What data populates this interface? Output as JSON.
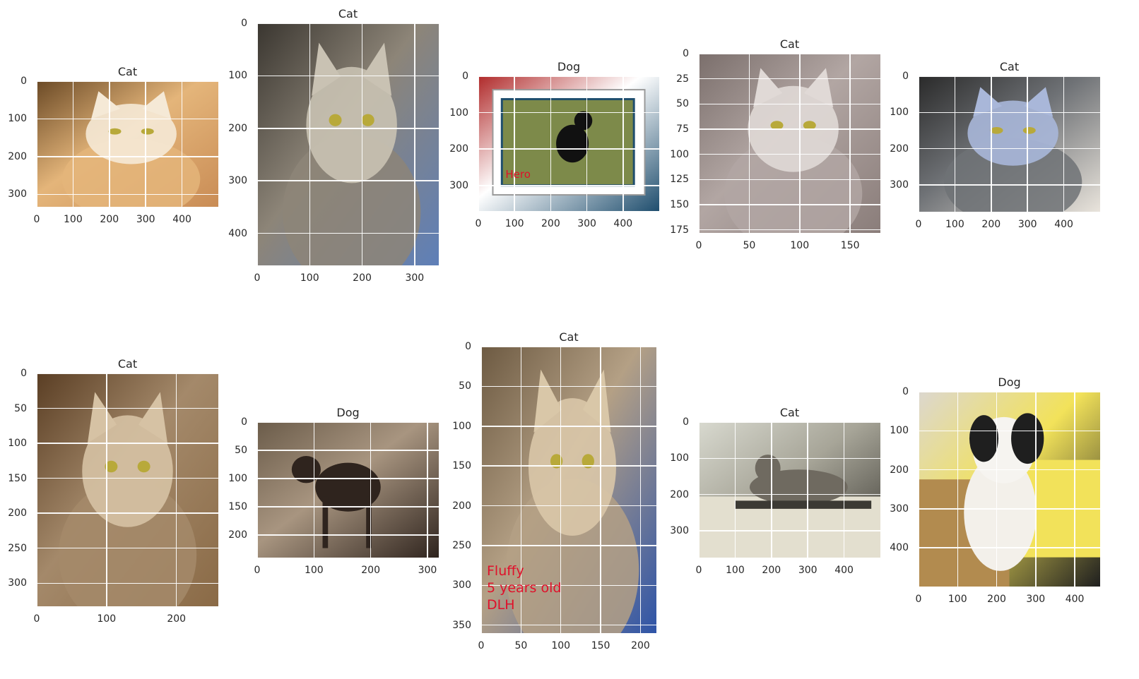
{
  "panels": [
    {
      "title": "Cat",
      "xlim": [
        0,
        500
      ],
      "ylim": [
        0,
        333
      ],
      "xticks": [
        0,
        100,
        200,
        300,
        400
      ],
      "yticks": [
        0,
        100,
        200,
        300
      ],
      "palette": [
        "#6b4a26",
        "#e4b57a",
        "#f5e9d6",
        "#c98c55"
      ],
      "subject": "orange-cat"
    },
    {
      "title": "Cat",
      "xlim": [
        0,
        346
      ],
      "ylim": [
        0,
        461
      ],
      "xticks": [
        0,
        100,
        200,
        300
      ],
      "yticks": [
        0,
        100,
        200,
        300,
        400
      ],
      "palette": [
        "#3a3630",
        "#8d8578",
        "#c9c2b3",
        "#5e7fb8"
      ],
      "subject": "tabby-cat"
    },
    {
      "title": "Dog",
      "xlim": [
        0,
        500
      ],
      "ylim": [
        0,
        370
      ],
      "xticks": [
        0,
        100,
        200,
        300,
        400
      ],
      "yticks": [
        0,
        100,
        200,
        300
      ],
      "palette": [
        "#b02a2a",
        "#ffffff",
        "#7d8a4a",
        "#1f4e6e"
      ],
      "subject": "framed-dog",
      "overlay_text": "Hero"
    },
    {
      "title": "Cat",
      "xlim": [
        0,
        180
      ],
      "ylim": [
        0,
        178
      ],
      "xticks": [
        0,
        50,
        100,
        150
      ],
      "yticks": [
        0,
        25,
        50,
        75,
        100,
        125,
        150,
        175
      ],
      "palette": [
        "#7b6f6c",
        "#b2a6a3",
        "#e0d9d6",
        "#8a7d7a"
      ],
      "subject": "siamese-cat"
    },
    {
      "title": "Cat",
      "xlim": [
        0,
        500
      ],
      "ylim": [
        0,
        374
      ],
      "xticks": [
        0,
        100,
        200,
        300,
        400
      ],
      "yticks": [
        0,
        100,
        200,
        300
      ],
      "palette": [
        "#2a2a2a",
        "#6f7276",
        "#a9b7d9",
        "#e9e4dc"
      ],
      "subject": "grey-cat"
    },
    {
      "title": "Cat",
      "xlim": [
        0,
        260
      ],
      "ylim": [
        0,
        333
      ],
      "xticks": [
        0,
        100,
        200
      ],
      "yticks": [
        0,
        50,
        100,
        150,
        200,
        250,
        300
      ],
      "palette": [
        "#5a3e24",
        "#a4896a",
        "#d6c2a4",
        "#8a6a46"
      ],
      "subject": "closeup-cat"
    },
    {
      "title": "Dog",
      "xlim": [
        0,
        320
      ],
      "ylim": [
        0,
        240
      ],
      "xticks": [
        0,
        100,
        200,
        300
      ],
      "yticks": [
        0,
        50,
        100,
        150,
        200
      ],
      "palette": [
        "#6b5c4a",
        "#a89580",
        "#cfc3b0",
        "#2f241e"
      ],
      "subject": "brown-dog"
    },
    {
      "title": "Cat",
      "xlim": [
        0,
        220
      ],
      "ylim": [
        0,
        360
      ],
      "xticks": [
        0,
        50,
        100,
        150,
        200
      ],
      "yticks": [
        0,
        50,
        100,
        150,
        200,
        250,
        300,
        350
      ],
      "palette": [
        "#6d5a42",
        "#b4a085",
        "#d9c7a8",
        "#2e54a8"
      ],
      "subject": "fluffy-cat",
      "overlay_text": "Fluffy\n5 years old\nDLH"
    },
    {
      "title": "Cat",
      "xlim": [
        0,
        500
      ],
      "ylim": [
        0,
        374
      ],
      "xticks": [
        0,
        100,
        200,
        300,
        400
      ],
      "yticks": [
        0,
        100,
        200,
        300
      ],
      "palette": [
        "#d8d9cf",
        "#a7a598",
        "#6f6a60",
        "#3c3a34"
      ],
      "subject": "cat-on-rack"
    },
    {
      "title": "Dog",
      "xlim": [
        0,
        465
      ],
      "ylim": [
        0,
        499
      ],
      "xticks": [
        0,
        100,
        200,
        300,
        400
      ],
      "yticks": [
        0,
        100,
        200,
        300,
        400
      ],
      "palette": [
        "#dcd7cf",
        "#f2e25a",
        "#b28b4f",
        "#1f1f1f"
      ],
      "subject": "puppy"
    }
  ]
}
